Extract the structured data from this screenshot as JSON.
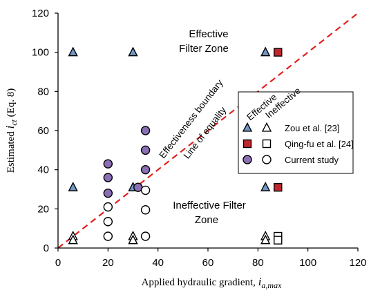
{
  "chart_data": {
    "type": "scatter",
    "xlabel_main": "Applied hydraulic gradient, ",
    "xlabel_var": "i",
    "xlabel_sub": "a,max",
    "ylabel_main": "Estimated ",
    "ylabel_var": "i",
    "ylabel_sub": "ct",
    "ylabel_suffix": " (Eq. 8)",
    "xlim": [
      0,
      120
    ],
    "ylim": [
      0,
      120
    ],
    "xticks": [
      0,
      20,
      40,
      60,
      80,
      100,
      120
    ],
    "yticks": [
      0,
      20,
      40,
      60,
      80,
      100,
      120
    ],
    "grid": false,
    "legend_position": "right",
    "legend_header": [
      "Effective",
      "Ineffective"
    ],
    "equality_line": {
      "x": [
        0,
        120
      ],
      "y": [
        0,
        120
      ],
      "color": "#e0201b",
      "style": "dashed"
    },
    "annotations": {
      "effective_zone": [
        "Effective",
        "Filter Zone"
      ],
      "ineffective_zone": [
        "Ineffective Filter",
        "Zone"
      ],
      "boundary": "Effectiveness boundary",
      "equality": "Line of equality"
    },
    "series": [
      {
        "name": "Zou et al. [23]",
        "marker": "triangle",
        "filled": true,
        "color": "#6f98c7",
        "points": [
          [
            6,
            100
          ],
          [
            6,
            31
          ],
          [
            30,
            100
          ],
          [
            30,
            31
          ],
          [
            83,
            100
          ],
          [
            83,
            31
          ]
        ]
      },
      {
        "name": "Zou et al. [23]",
        "marker": "triangle",
        "filled": false,
        "points": [
          [
            6,
            6
          ],
          [
            6,
            4
          ],
          [
            30,
            6
          ],
          [
            30,
            4
          ],
          [
            83,
            6
          ],
          [
            83,
            4
          ]
        ]
      },
      {
        "name": "Qing-fu et al. [24]",
        "marker": "square",
        "filled": true,
        "color": "#c0272d",
        "points": [
          [
            88,
            100
          ],
          [
            88,
            31
          ]
        ]
      },
      {
        "name": "Qing-fu et al. [24]",
        "marker": "square",
        "filled": false,
        "points": [
          [
            88,
            6
          ],
          [
            88,
            4
          ]
        ]
      },
      {
        "name": "Current study",
        "marker": "circle",
        "filled": true,
        "color": "#8a6fb5",
        "points": [
          [
            20,
            43
          ],
          [
            20,
            36
          ],
          [
            20,
            28
          ],
          [
            32,
            31
          ],
          [
            35,
            60
          ],
          [
            35,
            50
          ],
          [
            35,
            40
          ]
        ]
      },
      {
        "name": "Current study",
        "marker": "circle",
        "filled": false,
        "points": [
          [
            20,
            21
          ],
          [
            20,
            13.5
          ],
          [
            20,
            6
          ],
          [
            35,
            29.5
          ],
          [
            35,
            19.5
          ],
          [
            35,
            6
          ]
        ]
      }
    ]
  }
}
